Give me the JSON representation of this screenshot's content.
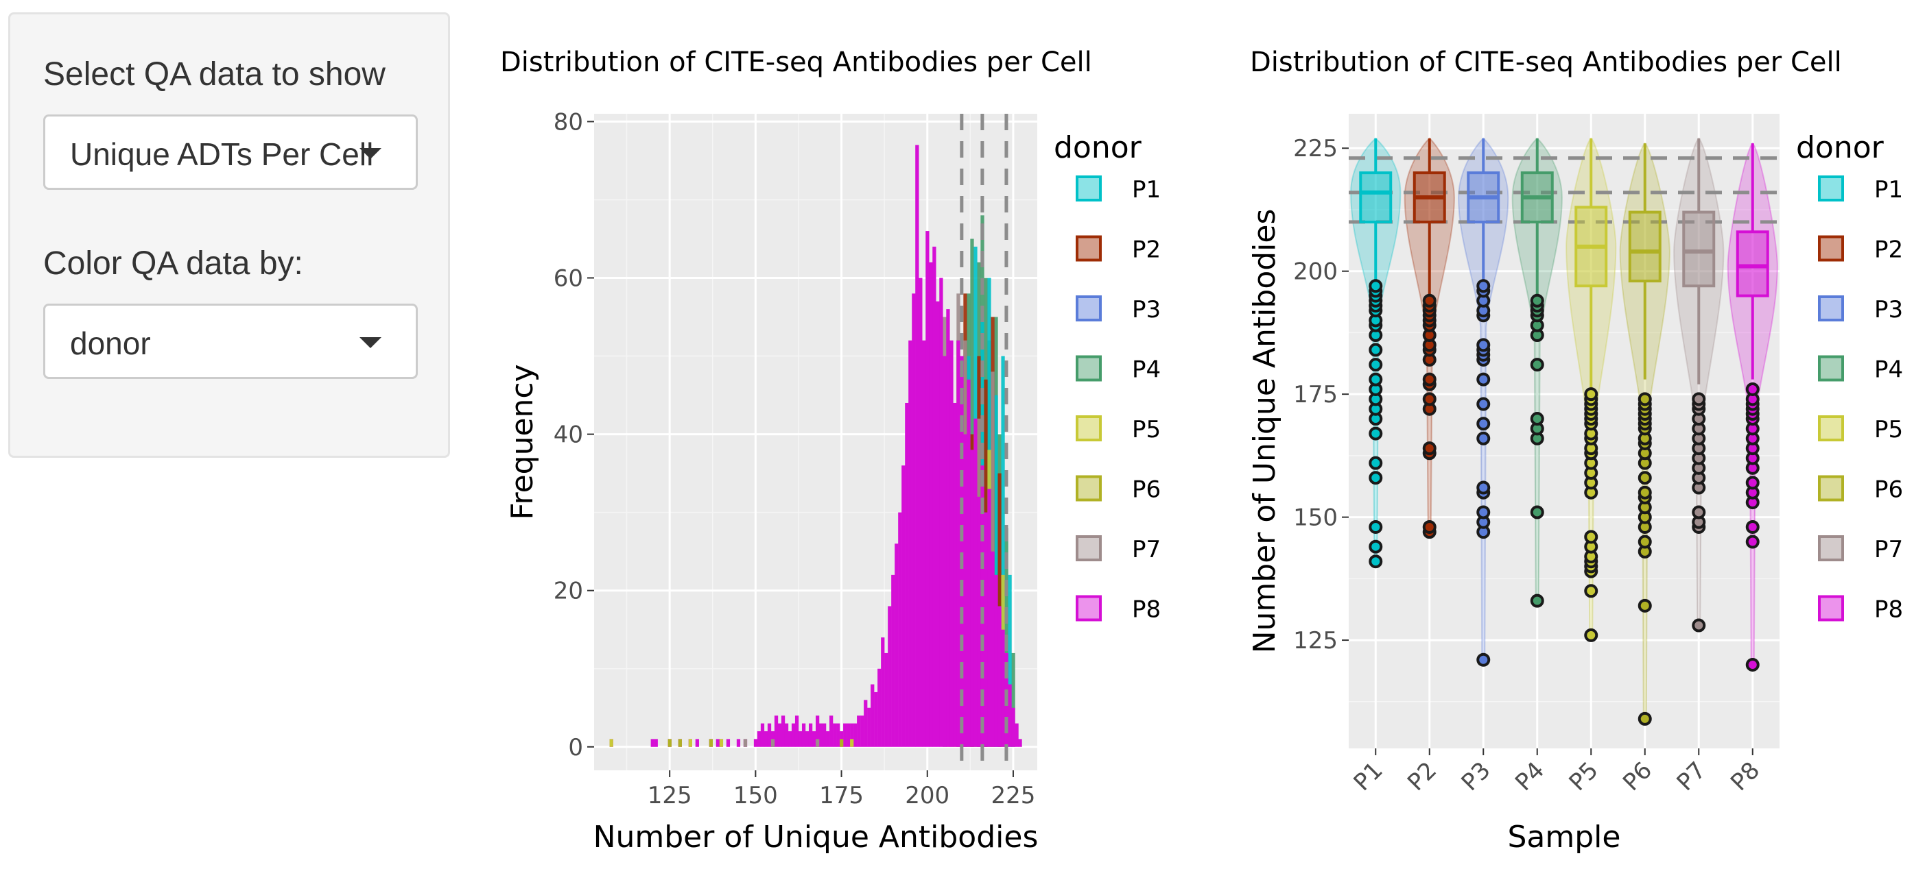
{
  "controls": {
    "qa_label": "Select QA data to show",
    "qa_value": "Unique ADTs Per Cell",
    "color_label": "Color QA data by:",
    "color_value": "donor"
  },
  "legend": {
    "title": "donor",
    "items": [
      {
        "label": "P1",
        "color": "#00C1C8"
      },
      {
        "label": "P2",
        "color": "#9E2C05"
      },
      {
        "label": "P3",
        "color": "#5A7CD9"
      },
      {
        "label": "P4",
        "color": "#459C6A"
      },
      {
        "label": "P5",
        "color": "#C8C936"
      },
      {
        "label": "P6",
        "color": "#B0B124"
      },
      {
        "label": "P7",
        "color": "#9E8C8C"
      },
      {
        "label": "P8",
        "color": "#D50FD5"
      }
    ]
  },
  "chart_data": [
    {
      "type": "bar",
      "subtype": "histogram",
      "title": "Distribution of CITE-seq Antibodies per Cell",
      "xlabel": "Number of Unique Antibodies",
      "ylabel": "Frequency",
      "xlim": [
        103,
        232
      ],
      "ylim": [
        -3,
        81
      ],
      "xticks": [
        125,
        150,
        175,
        200,
        225
      ],
      "yticks": [
        0,
        20,
        40,
        60,
        80
      ],
      "reference_lines": [
        210,
        216,
        223
      ],
      "dominant_series": "P8",
      "bins": [
        [
          108,
          1
        ],
        [
          120,
          1
        ],
        [
          121,
          1
        ],
        [
          125,
          1
        ],
        [
          128,
          1
        ],
        [
          131,
          1
        ],
        [
          133,
          1
        ],
        [
          137,
          1
        ],
        [
          139,
          1
        ],
        [
          140,
          1
        ],
        [
          142,
          1
        ],
        [
          145,
          1
        ],
        [
          147,
          1
        ],
        [
          150,
          1
        ],
        [
          151,
          2
        ],
        [
          152,
          3
        ],
        [
          153,
          2
        ],
        [
          154,
          3
        ],
        [
          155,
          2
        ],
        [
          156,
          4
        ],
        [
          157,
          3
        ],
        [
          158,
          4
        ],
        [
          159,
          3
        ],
        [
          160,
          2
        ],
        [
          161,
          3
        ],
        [
          162,
          4
        ],
        [
          163,
          2
        ],
        [
          164,
          3
        ],
        [
          165,
          2
        ],
        [
          166,
          3
        ],
        [
          167,
          2
        ],
        [
          168,
          4
        ],
        [
          169,
          3
        ],
        [
          170,
          3
        ],
        [
          171,
          2
        ],
        [
          172,
          4
        ],
        [
          173,
          3
        ],
        [
          174,
          3
        ],
        [
          175,
          2
        ],
        [
          176,
          3
        ],
        [
          177,
          3
        ],
        [
          178,
          3
        ],
        [
          179,
          3
        ],
        [
          180,
          4
        ],
        [
          181,
          4
        ],
        [
          182,
          6
        ],
        [
          183,
          5
        ],
        [
          184,
          8
        ],
        [
          185,
          7
        ],
        [
          186,
          10
        ],
        [
          187,
          14
        ],
        [
          188,
          12
        ],
        [
          189,
          18
        ],
        [
          190,
          22
        ],
        [
          191,
          26
        ],
        [
          192,
          30
        ],
        [
          193,
          36
        ],
        [
          194,
          44
        ],
        [
          195,
          52
        ],
        [
          196,
          58
        ],
        [
          197,
          77
        ],
        [
          198,
          60
        ],
        [
          199,
          52
        ],
        [
          200,
          66
        ],
        [
          201,
          62
        ],
        [
          202,
          64
        ],
        [
          203,
          57
        ],
        [
          204,
          60
        ],
        [
          205,
          50
        ],
        [
          206,
          56
        ],
        [
          207,
          52
        ],
        [
          208,
          44
        ],
        [
          209,
          52
        ],
        [
          210,
          50
        ],
        [
          211,
          40
        ],
        [
          212,
          47
        ],
        [
          213,
          38
        ],
        [
          214,
          42
        ],
        [
          215,
          32
        ],
        [
          216,
          36
        ],
        [
          217,
          30
        ],
        [
          218,
          33
        ],
        [
          219,
          25
        ],
        [
          220,
          22
        ],
        [
          221,
          18
        ],
        [
          222,
          15
        ],
        [
          223,
          12
        ],
        [
          224,
          8
        ],
        [
          225,
          5
        ],
        [
          226,
          3
        ],
        [
          227,
          1
        ]
      ],
      "overlay_bins": [
        {
          "name": "P4",
          "bins": [
            [
              210,
              45
            ],
            [
              212,
              58
            ],
            [
              213,
              65
            ],
            [
              215,
              62
            ],
            [
              216,
              68
            ],
            [
              217,
              60
            ],
            [
              218,
              52
            ],
            [
              220,
              55
            ],
            [
              221,
              40
            ],
            [
              223,
              28
            ],
            [
              225,
              12
            ]
          ]
        },
        {
          "name": "P1",
          "bins": [
            [
              212,
              50
            ],
            [
              214,
              64
            ],
            [
              216,
              55
            ],
            [
              218,
              60
            ],
            [
              220,
              45
            ],
            [
              222,
              50
            ],
            [
              224,
              22
            ]
          ]
        },
        {
          "name": "P2",
          "bins": [
            [
              209,
              52
            ],
            [
              211,
              58
            ],
            [
              213,
              40
            ],
            [
              215,
              50
            ],
            [
              217,
              47
            ],
            [
              219,
              55
            ],
            [
              221,
              35
            ]
          ]
        },
        {
          "name": "P7",
          "bins": [
            [
              205,
              55
            ],
            [
              207,
              48
            ],
            [
              209,
              58
            ],
            [
              211,
              52
            ],
            [
              215,
              42
            ],
            [
              219,
              48
            ]
          ]
        },
        {
          "name": "P5",
          "bins": [
            [
              206,
              30
            ],
            [
              208,
              28
            ],
            [
              212,
              35
            ],
            [
              214,
              40
            ],
            [
              218,
              38
            ],
            [
              222,
              22
            ]
          ]
        }
      ]
    },
    {
      "type": "violin+box",
      "title": "Distribution of CITE-seq Antibodies per Cell",
      "xlabel": "Sample",
      "ylabel": "Number of Unique Antibodies",
      "ylim": [
        103,
        232
      ],
      "yticks": [
        125,
        150,
        175,
        200,
        225
      ],
      "categories": [
        "P1",
        "P2",
        "P3",
        "P4",
        "P5",
        "P6",
        "P7",
        "P8"
      ],
      "reference_lines": [
        210,
        216,
        223
      ],
      "boxes": [
        {
          "name": "P1",
          "whisker_low": 198,
          "q1": 210,
          "median": 216,
          "q3": 220,
          "whisker_high": 227,
          "min": 141
        },
        {
          "name": "P2",
          "whisker_low": 195,
          "q1": 210,
          "median": 215,
          "q3": 220,
          "whisker_high": 227,
          "min": 147
        },
        {
          "name": "P3",
          "whisker_low": 197,
          "q1": 210,
          "median": 215,
          "q3": 220,
          "whisker_high": 227,
          "min": 121
        },
        {
          "name": "P4",
          "whisker_low": 195,
          "q1": 210,
          "median": 215,
          "q3": 220,
          "whisker_high": 227,
          "min": 133
        },
        {
          "name": "P5",
          "whisker_low": 176,
          "q1": 197,
          "median": 205,
          "q3": 213,
          "whisker_high": 227,
          "min": 126
        },
        {
          "name": "P6",
          "whisker_low": 178,
          "q1": 198,
          "median": 204,
          "q3": 212,
          "whisker_high": 226,
          "min": 109
        },
        {
          "name": "P7",
          "whisker_low": 177,
          "q1": 197,
          "median": 204,
          "q3": 212,
          "whisker_high": 227,
          "min": 128
        },
        {
          "name": "P8",
          "whisker_low": 178,
          "q1": 195,
          "median": 201,
          "q3": 208,
          "whisker_high": 226,
          "min": 120
        }
      ],
      "outliers": [
        [
          141,
          144,
          148,
          158,
          161,
          167,
          170,
          172,
          174,
          176,
          178,
          181,
          184,
          187,
          189,
          190,
          192,
          193,
          194,
          195,
          196,
          197
        ],
        [
          147,
          148,
          163,
          164,
          172,
          174,
          177,
          178,
          182,
          184,
          185,
          187,
          189,
          190,
          191,
          192,
          193,
          194
        ],
        [
          121,
          147,
          149,
          151,
          155,
          156,
          166,
          169,
          173,
          178,
          182,
          183,
          184,
          185,
          191,
          192,
          194,
          196,
          197
        ],
        [
          133,
          151,
          166,
          168,
          170,
          181,
          187,
          189,
          191,
          192,
          193,
          194
        ],
        [
          126,
          135,
          139,
          140,
          141,
          142,
          144,
          146,
          155,
          157,
          159,
          161,
          163,
          164,
          166,
          167,
          169,
          170,
          171,
          172,
          173,
          174,
          175
        ],
        [
          109,
          132,
          143,
          145,
          148,
          150,
          152,
          154,
          155,
          158,
          161,
          163,
          165,
          166,
          168,
          169,
          170,
          171,
          172,
          173,
          174
        ],
        [
          128,
          148,
          149,
          151,
          156,
          158,
          160,
          162,
          164,
          166,
          168,
          170,
          172,
          173,
          174
        ],
        [
          120,
          145,
          148,
          153,
          155,
          157,
          160,
          162,
          164,
          166,
          168,
          170,
          171,
          172,
          173,
          174,
          176
        ]
      ]
    }
  ]
}
